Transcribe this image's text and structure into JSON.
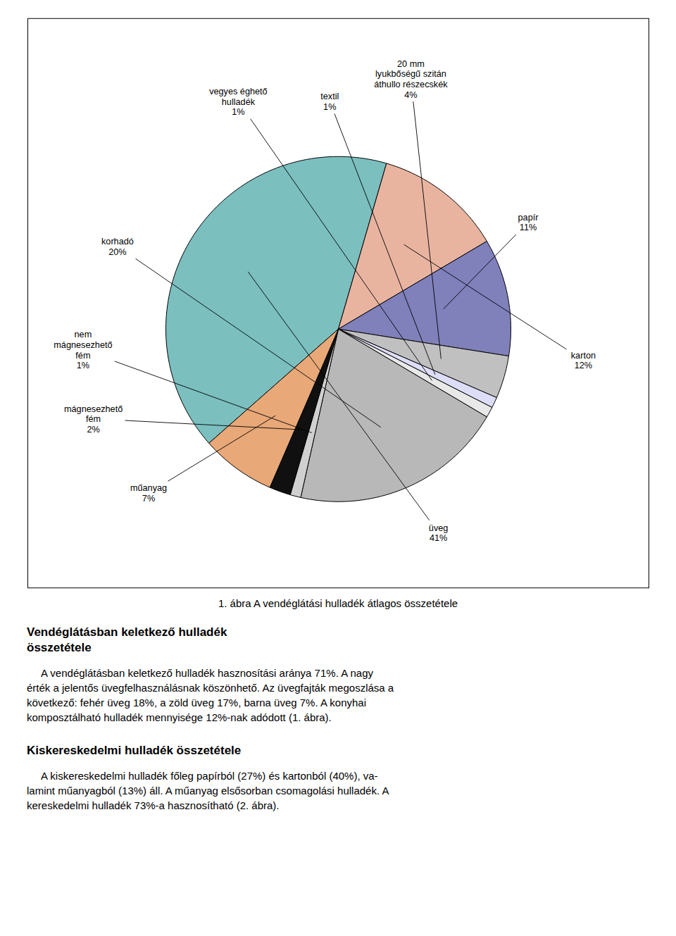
{
  "chart_data": {
    "type": "pie",
    "title": "1. ábra A vendéglátási hulladék átlagos összetétele",
    "categories": [
      "üveg",
      "karton",
      "papír",
      "20 mm\nlyukbőségű szitán\náthullo részecskék",
      "textil",
      "vegyes éghető\nhulladék",
      "korhadó",
      "nem\nmágnesezhető\nfém",
      "mágnesezhető\nfém",
      "műanyag"
    ],
    "values": [
      41,
      12,
      11,
      4,
      1,
      1,
      20,
      1,
      2,
      7
    ],
    "value_labels": [
      "41%",
      "12%",
      "11%",
      "4%",
      "1%",
      "1%",
      "20%",
      "1%",
      "2%",
      "7%"
    ],
    "data_labels": true,
    "colors": [
      "#7BBFBF",
      "#E8B4A0",
      "#8080BB",
      "#C0C0C0",
      "#DDDDF8",
      "#E8E8E8",
      "#B8B8B8",
      "#D0D0D0",
      "#101010",
      "#E8A878"
    ],
    "sections": [
      {
        "heading": "Vendéglátásban keletkező hulladék\nösszetétele",
        "body": "     A vendéglátásban keletkező hulladék hasznosítási aránya 71%. A nagy\nérték a jelentős üvegfelhasználásnak köszönhető. Az üvegfajták megoszlása a\nkövetkező: fehér üveg 18%, a zöld üveg 17%, barna üveg 7%. A konyhai\nkomposztálható hulladék mennyisége 12%-nak adódott (1. ábra)."
      },
      {
        "heading": "Kiskereskedelmi hulladék összetétele",
        "body": "     A kiskereskedelmi hulladék főleg papírból (27%) és kartonból (40%), va-\nlamint műanyagból (13%) áll. A műanyag elsősorban csomagolási hulladék. A\nkereskedelmi hulladék 73%-a hasznosítható (2. ábra)."
      }
    ]
  }
}
